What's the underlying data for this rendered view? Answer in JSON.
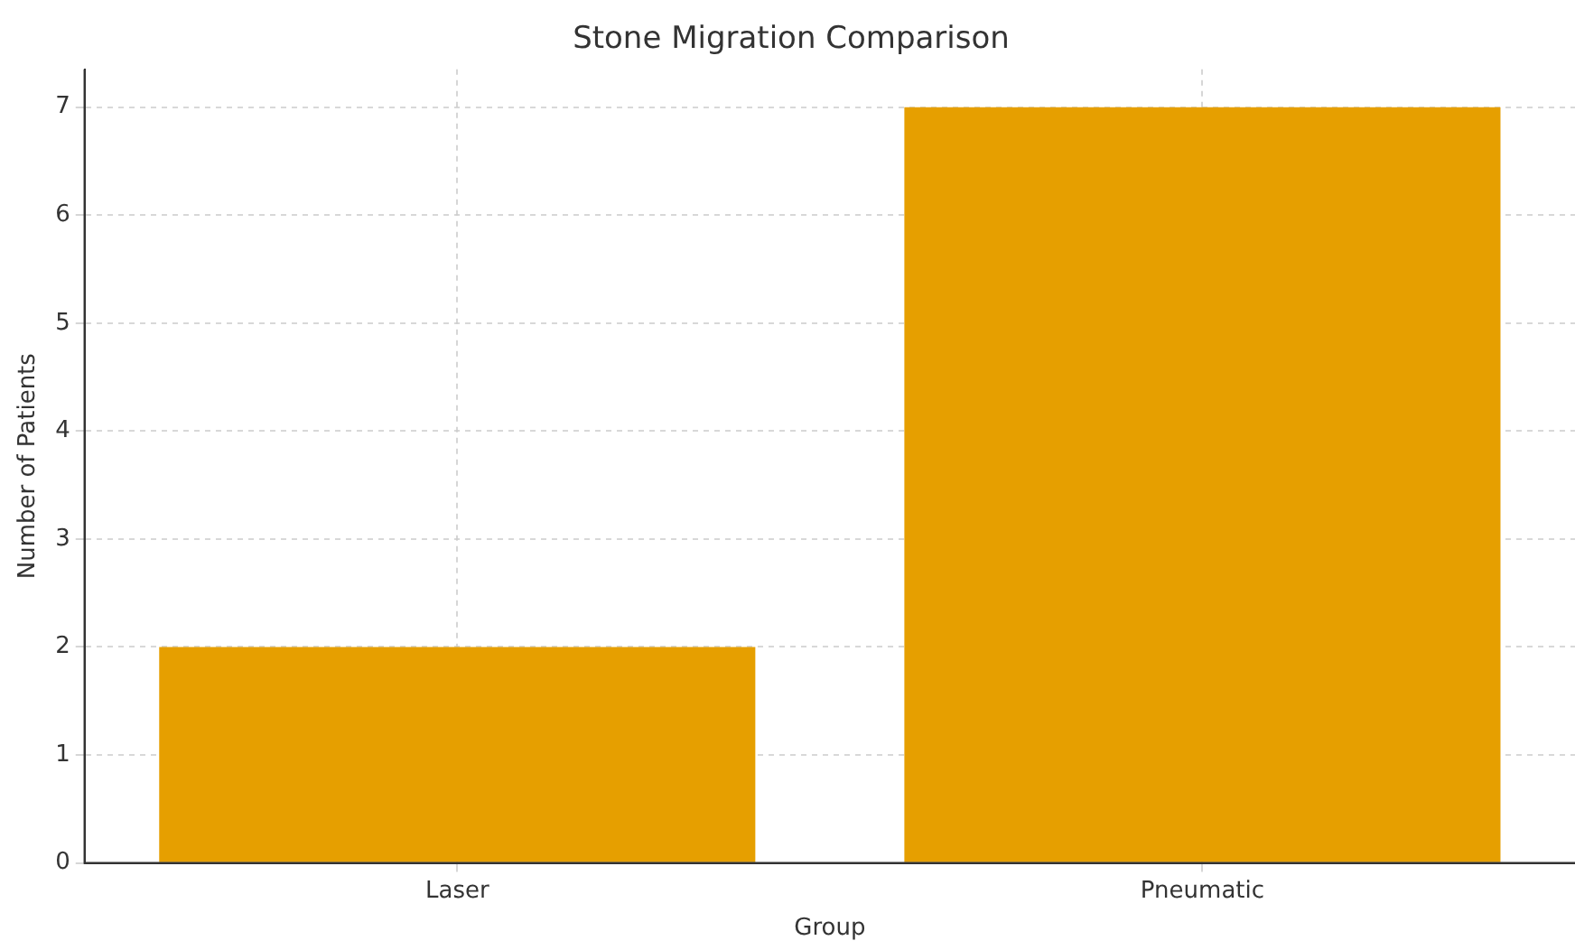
{
  "chart_data": {
    "type": "bar",
    "title": "Stone Migration Comparison",
    "xlabel": "Group",
    "ylabel": "Number of Patients",
    "categories": [
      "Laser",
      "Pneumatic"
    ],
    "values": [
      2,
      7
    ],
    "color": "#e69f00",
    "ylim": [
      0,
      7.35
    ],
    "yticks": [
      0,
      1,
      2,
      3,
      4,
      5,
      6,
      7
    ],
    "grid": true
  }
}
